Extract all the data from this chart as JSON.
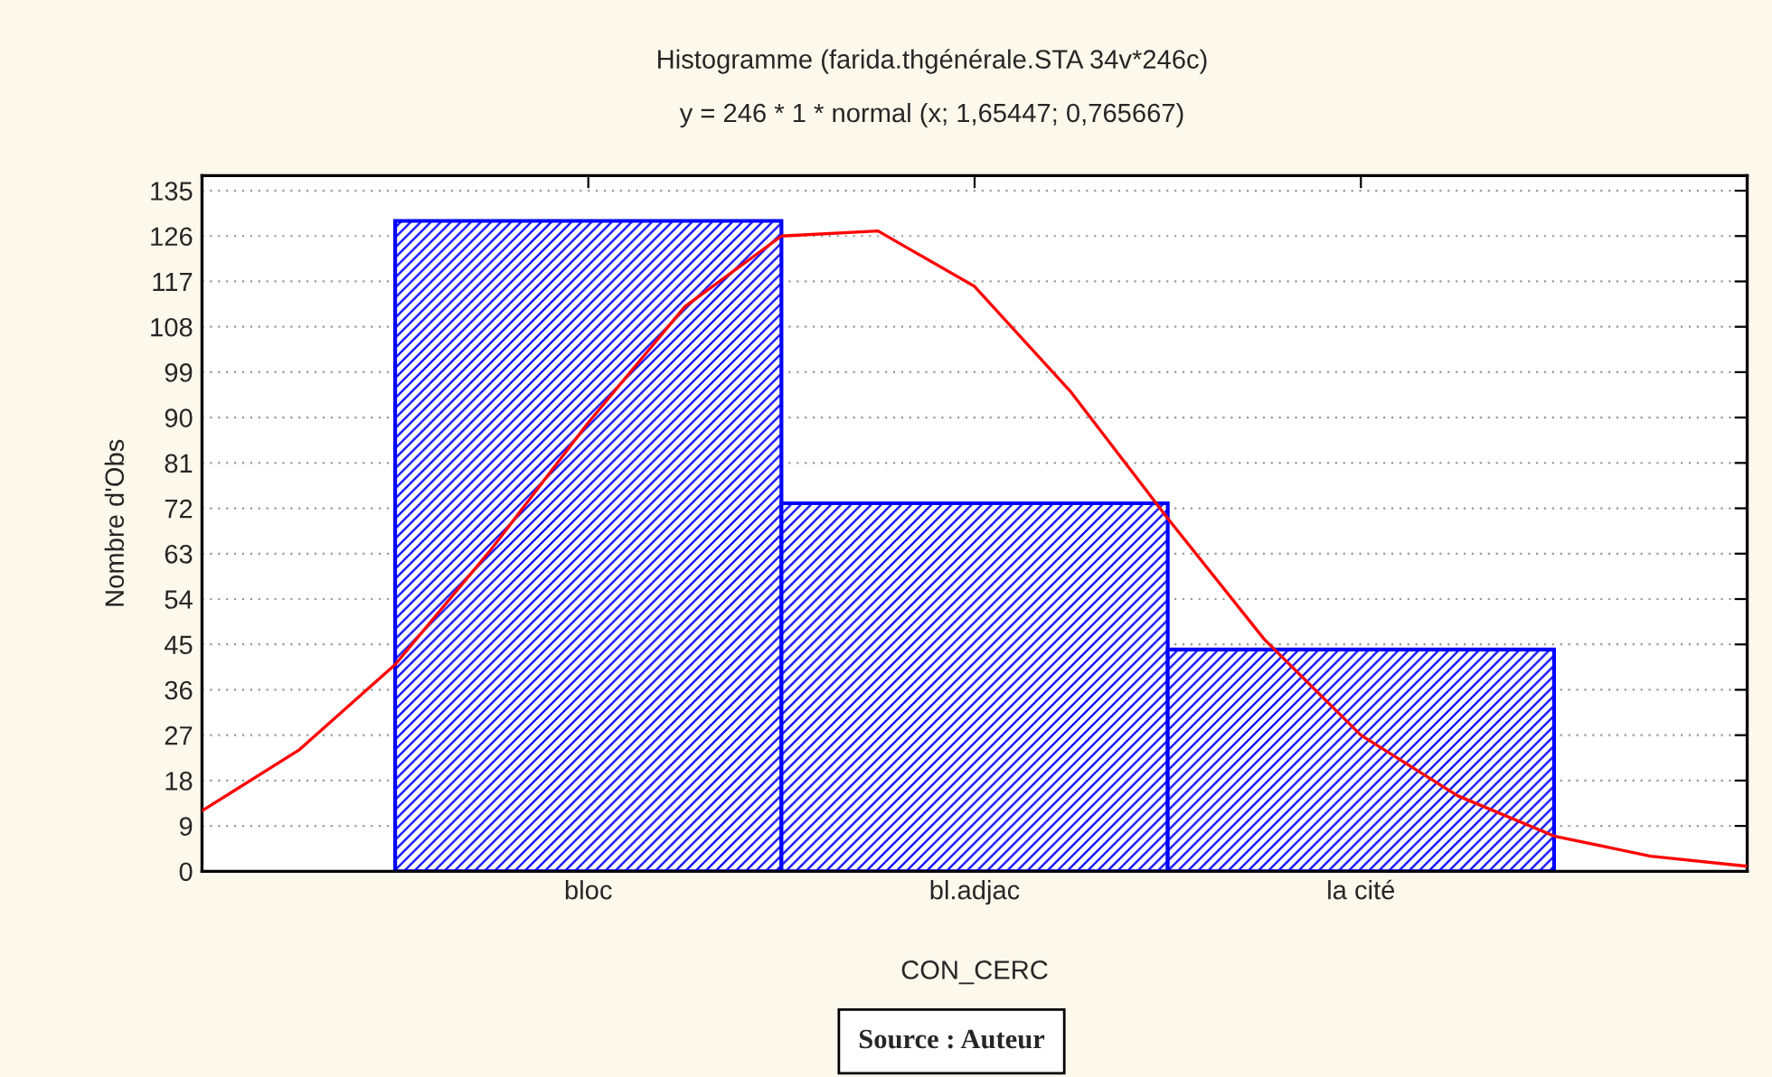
{
  "chart_data": [
    {
      "type": "bar",
      "title": "Histogramme (farida.thgénérale.STA 34v*246c)",
      "subtitle": "y = 246 * 1 * normal (x; 1,65447; 0,765667)",
      "xlabel": "CON_CERC",
      "ylabel": "Nombre d'Obs",
      "categories": [
        "bloc",
        "bl.adjac",
        "la cité"
      ],
      "values": [
        129,
        73,
        44
      ],
      "color": "#0000ff",
      "ylim": [
        0,
        138
      ],
      "yticks": [
        0,
        9,
        18,
        27,
        36,
        45,
        54,
        63,
        72,
        81,
        90,
        99,
        108,
        117,
        126,
        135
      ],
      "grid": "y",
      "annotations": [
        "Source : Auteur"
      ]
    },
    {
      "type": "line",
      "categories": [
        null,
        null,
        null,
        null,
        null,
        null,
        null,
        null,
        null,
        null,
        null,
        null,
        null,
        null,
        null,
        null,
        null
      ],
      "series": [
        {
          "color": "#ff0000",
          "values": [
            12,
            24,
            41,
            64,
            89,
            112,
            126,
            127,
            116,
            95,
            70,
            46,
            27,
            15,
            7,
            3,
            1
          ]
        }
      ],
      "ylim": [
        0,
        138
      ],
      "tick_labels": false
    }
  ]
}
